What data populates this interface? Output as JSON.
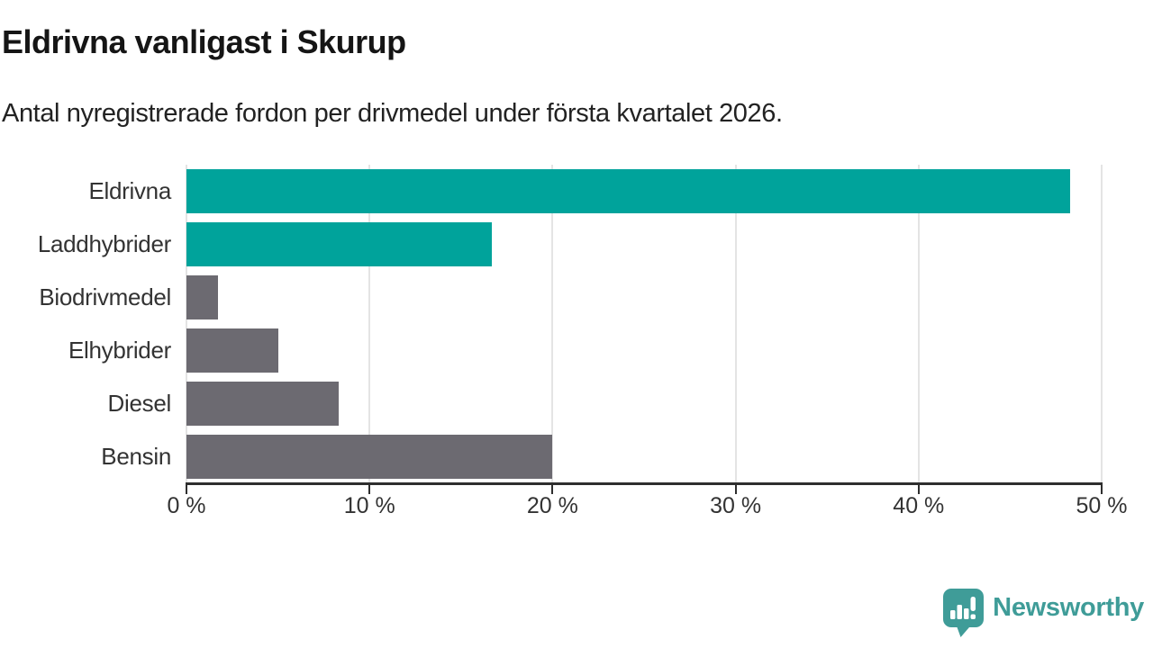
{
  "header": {
    "title": "Eldrivna vanligast i Skurup",
    "subtitle": "Antal nyregistrerade fordon per drivmedel under första kvartalet 2026."
  },
  "chart_data": {
    "type": "bar",
    "orientation": "horizontal",
    "title": "Eldrivna vanligast i Skurup",
    "subtitle": "Antal nyregistrerade fordon per drivmedel under första kvartalet 2026.",
    "categories": [
      "Eldrivna",
      "Laddhybrider",
      "Biodrivmedel",
      "Elhybrider",
      "Diesel",
      "Bensin"
    ],
    "values": [
      48.3,
      16.7,
      1.7,
      5.0,
      8.3,
      20.0
    ],
    "value_unit": "%",
    "xlim": [
      0,
      50
    ],
    "x_ticks": [
      0,
      10,
      20,
      30,
      40,
      50
    ],
    "x_tick_labels": [
      "0 %",
      "10 %",
      "20 %",
      "30 %",
      "40 %",
      "50 %"
    ],
    "grid": "vertical",
    "legend": "none",
    "bar_colors": [
      "#00a39b",
      "#00a39b",
      "#6c6a71",
      "#6c6a71",
      "#6c6a71",
      "#6c6a71"
    ]
  },
  "colors": {
    "accent_teal": "#00a39b",
    "bar_gray": "#6c6a71",
    "gridline": "#e4e4e4",
    "axis_line": "#2e2e2e",
    "title_text": "#151515",
    "label_text": "#333333",
    "brand_teal": "#3f9c98"
  },
  "footer": {
    "brand": "Newsworthy",
    "logo_icon": "newsworthy-speech-bubble-chart-icon"
  }
}
